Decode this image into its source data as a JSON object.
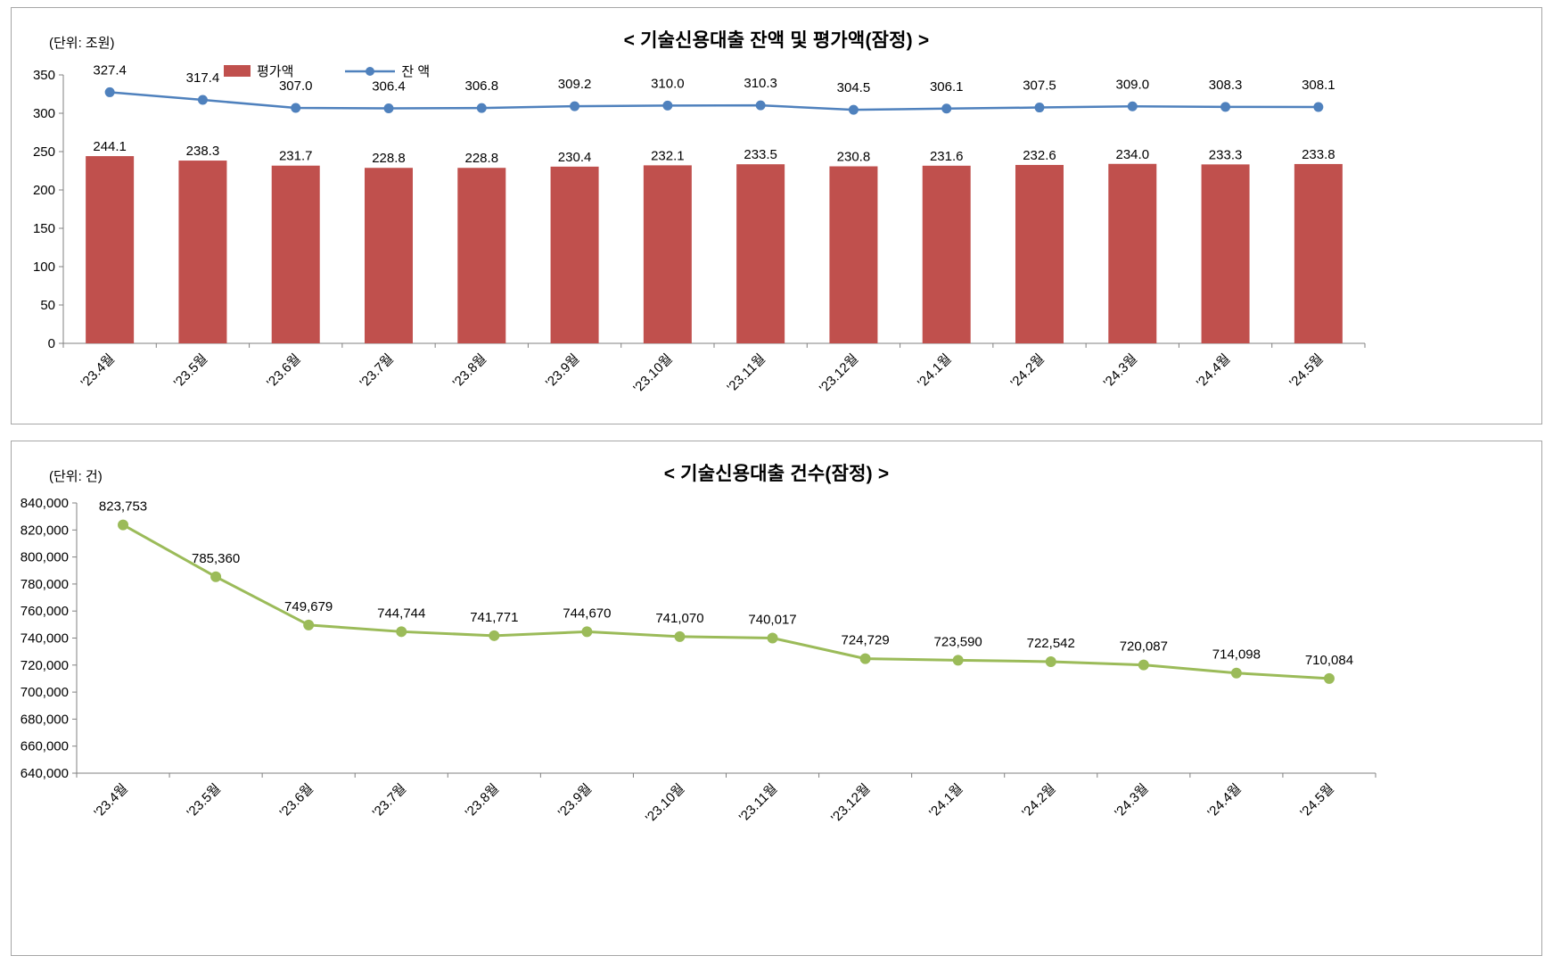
{
  "chart_data": [
    {
      "type": "combo",
      "title": "< 기술신용대출 잔액 및 평가액(잠정) >",
      "unit_label": "(단위: 조원)",
      "categories": [
        "'23.4월",
        "'23.5월",
        "'23.6월",
        "'23.7월",
        "'23.8월",
        "'23.9월",
        "'23.10월",
        "'23.11월",
        "'23.12월",
        "'24.1월",
        "'24.2월",
        "'24.3월",
        "'24.4월",
        "'24.5월"
      ],
      "series": [
        {
          "name": "평가액",
          "type": "bar",
          "color": "#C0504D",
          "values": [
            244.1,
            238.3,
            231.7,
            228.8,
            228.8,
            230.4,
            232.1,
            233.5,
            230.8,
            231.6,
            232.6,
            234.0,
            233.3,
            233.8
          ]
        },
        {
          "name": "잔 액",
          "type": "line",
          "color": "#4F81BD",
          "values": [
            327.4,
            317.4,
            307.0,
            306.4,
            306.8,
            309.2,
            310.0,
            310.3,
            304.5,
            306.1,
            307.5,
            309.0,
            308.3,
            308.1
          ]
        }
      ],
      "ylim": [
        0,
        350
      ],
      "ytick_step": 50,
      "ytick_format": "integer",
      "value_format": "one_decimal",
      "legend_position": "top",
      "grid": false
    },
    {
      "type": "line",
      "title": "< 기술신용대출 건수(잠정) >",
      "unit_label": "(단위: 건)",
      "categories": [
        "'23.4월",
        "'23.5월",
        "'23.6월",
        "'23.7월",
        "'23.8월",
        "'23.9월",
        "'23.10월",
        "'23.11월",
        "'23.12월",
        "'24.1월",
        "'24.2월",
        "'24.3월",
        "'24.4월",
        "'24.5월"
      ],
      "series": [
        {
          "name": "건수",
          "type": "line",
          "color": "#9BBB59",
          "values": [
            823753,
            785360,
            749679,
            744744,
            741771,
            744670,
            741070,
            740017,
            724729,
            723590,
            722542,
            720087,
            714098,
            710084
          ]
        }
      ],
      "ylim": [
        640000,
        840000
      ],
      "ytick_step": 20000,
      "ytick_format": "thousands",
      "value_format": "thousands",
      "legend_position": "none",
      "grid": false
    }
  ]
}
